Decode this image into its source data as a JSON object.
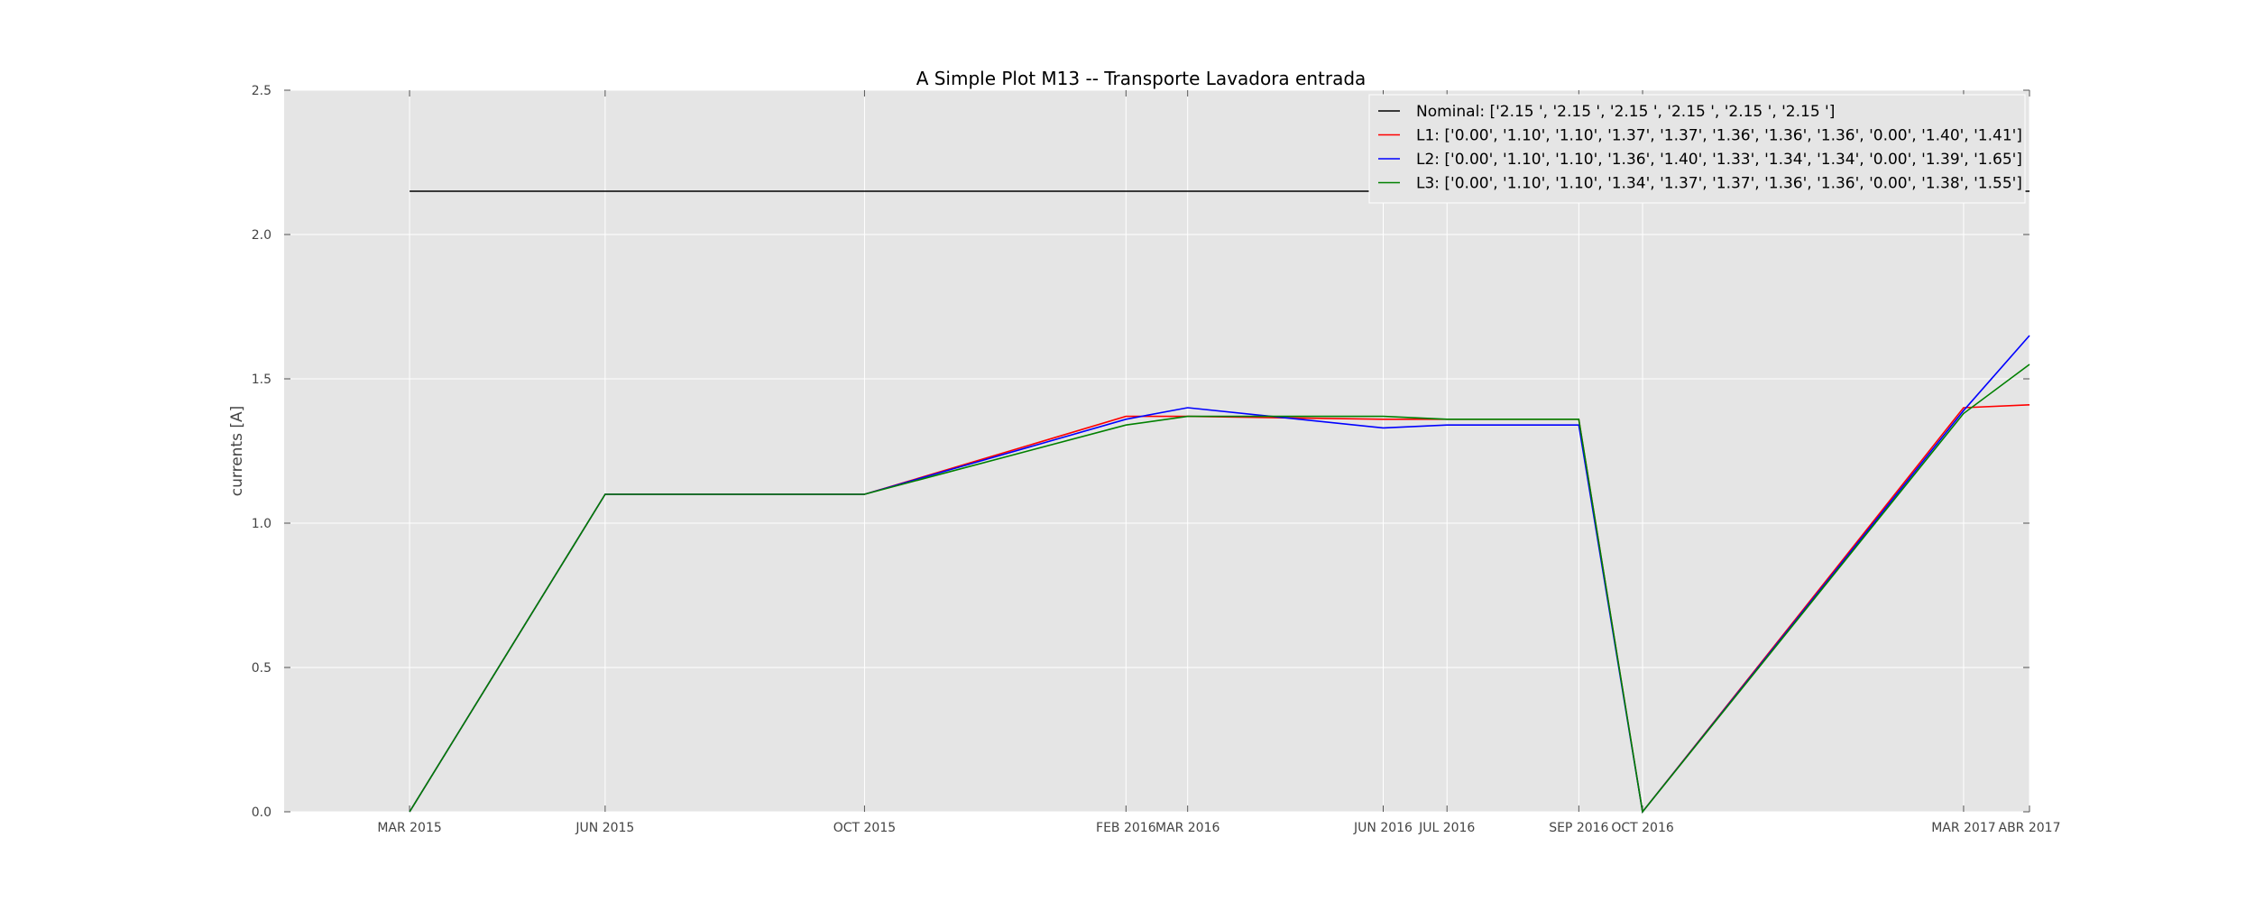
{
  "chart_data": {
    "type": "line",
    "title": "A Simple Plot M13 -- Transporte Lavadora entrada",
    "xlabel": "",
    "ylabel": "currents [A]",
    "ylim": [
      0,
      2.5
    ],
    "yticks": [
      "0.0",
      "0.5",
      "1.0",
      "1.5",
      "2.0",
      "2.5"
    ],
    "grid": true,
    "legend_position": "top-right",
    "background_color": "#e5e5e5",
    "x": [
      "2015-03-01",
      "2015-06-01",
      "2015-10-01",
      "2016-02-01",
      "2016-03-01",
      "2016-06-01",
      "2016-07-01",
      "2016-09-01",
      "2016-10-01",
      "2017-03-01",
      "2017-04-01"
    ],
    "xtick_labels": [
      "MAR 2015",
      "JUN 2015",
      "OCT 2015",
      "FEB 2016",
      "MAR 2016",
      "JUN 2016",
      "JUL 2016",
      "SEP 2016",
      "OCT 2016",
      "MAR 2017",
      "ABR 2017"
    ],
    "xlim": [
      "2015-01-01",
      "2017-04-01"
    ],
    "series": [
      {
        "name": "Nominal",
        "color": "#000000",
        "values": [
          2.15,
          2.15,
          2.15,
          2.15,
          2.15,
          2.15,
          2.15,
          2.15,
          2.15,
          2.15,
          2.15
        ],
        "legend": "Nominal:  ['2.15 ', '2.15 ', '2.15 ', '2.15 ', '2.15 ', '2.15 ']"
      },
      {
        "name": "L1",
        "color": "#ff0000",
        "values": [
          0.0,
          1.1,
          1.1,
          1.37,
          1.37,
          1.36,
          1.36,
          1.36,
          0.0,
          1.4,
          1.41
        ],
        "legend": "L1: ['0.00', '1.10', '1.10', '1.37', '1.37', '1.36', '1.36', '1.36', '0.00', '1.40', '1.41']"
      },
      {
        "name": "L2",
        "color": "#0000ff",
        "values": [
          0.0,
          1.1,
          1.1,
          1.36,
          1.4,
          1.33,
          1.34,
          1.34,
          0.0,
          1.39,
          1.65
        ],
        "legend": "L2:  ['0.00', '1.10', '1.10', '1.36', '1.40', '1.33', '1.34', '1.34', '0.00', '1.39', '1.65']"
      },
      {
        "name": "L3",
        "color": "#008000",
        "values": [
          0.0,
          1.1,
          1.1,
          1.34,
          1.37,
          1.37,
          1.36,
          1.36,
          0.0,
          1.38,
          1.55
        ],
        "legend": "L3: ['0.00', '1.10', '1.10', '1.34', '1.37', '1.37', '1.36', '1.36', '0.00', '1.38', '1.55']"
      }
    ]
  }
}
